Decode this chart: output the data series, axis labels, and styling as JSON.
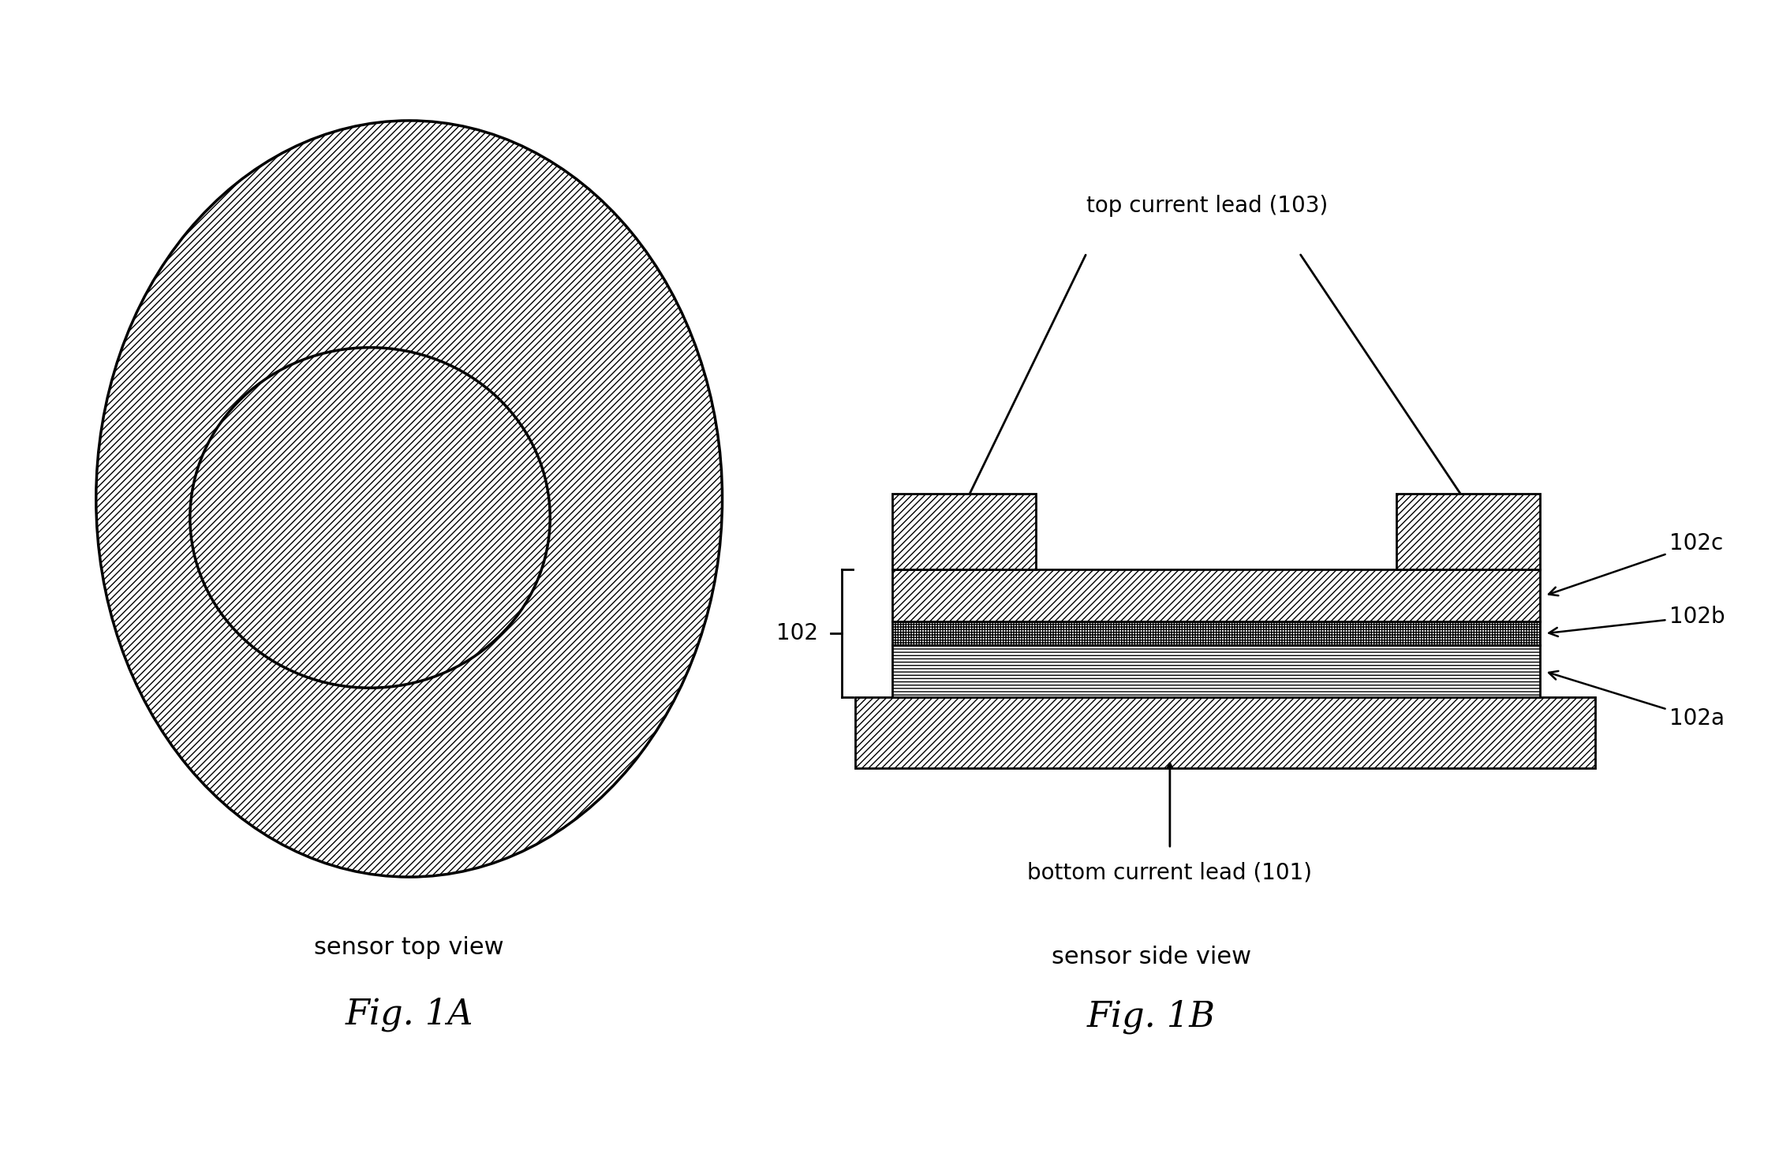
{
  "bg_color": "#ffffff",
  "fig_width": 22.55,
  "fig_height": 14.62,
  "fig1a_label": "Fig. 1A",
  "fig1b_label": "Fig. 1B",
  "label_fontsize": 32,
  "sensor_top_view_text": "sensor top view",
  "sensor_side_view_text": "sensor side view",
  "caption_fontsize": 22,
  "label_102c": "102c",
  "label_102b": "102b",
  "label_102a": "102a",
  "label_102": "102",
  "label_101_text": "bottom current lead (101)",
  "label_103_text": "top current lead (103)",
  "annotation_fontsize": 20
}
